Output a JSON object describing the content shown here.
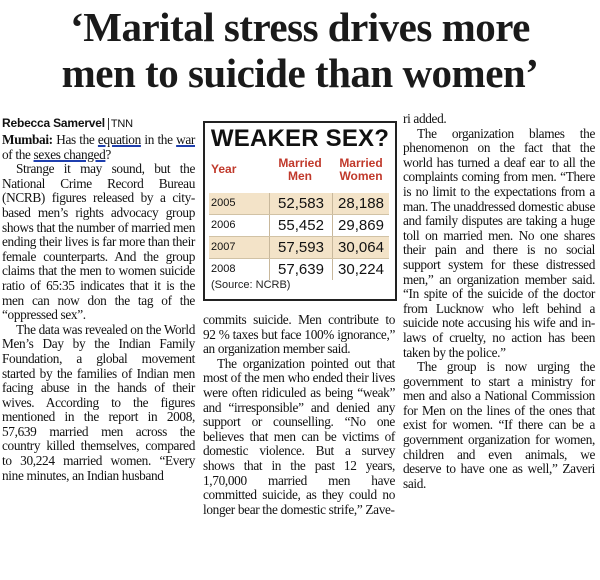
{
  "headline": {
    "line1": "‘Marital stress drives more",
    "line2": "men to suicide than women’"
  },
  "byline": {
    "author": "Rebecca Samervel",
    "agency": "TNN"
  },
  "col1": {
    "lead_dateline": "Mumbai:",
    "lead_a": " Has the ",
    "lead_u1": "equation",
    "lead_b": " in the ",
    "lead_u2": "war",
    "lead_c": " of the ",
    "lead_u3": "sexes changed",
    "lead_d": "?",
    "p2": "Strange it may sound, but the National Crime Record Bureau (NCRB) figures released by a city-based men’s rights advocacy group shows that the number of married men ending their lives is far more than their female counterparts. And the group claims that the men to women suicide ratio of 65:35 indicates that it is the men can now don the tag of the “oppressed sex”.",
    "p3": "The data was revealed on the World Men’s Day by the Indian Family Foundation, a global movement started by the families of Indian men facing abuse in the hands of their wives. According to the figures mentioned in the report in 2008, 57,639 married men across the country killed themselves, compared to 30,224 married women. “Every nine minutes, an Indian husband"
  },
  "col2": {
    "p1": "commits suicide. Men contribute to 92 % taxes but face 100% ignorance,” an organization member said.",
    "p2": "The organization pointed out that most of the men who ended their lives were often ridiculed as being “weak” and “irresponsible” and denied any support or counselling. “No one believes that men can be victims of domestic violence. But a survey shows that in the past 12 years, 1,70,000 married men have committed suicide, as they could no longer bear the domestic strife,” Zave-"
  },
  "col3": {
    "p1": "ri added.",
    "p2": "The organization blames the phenomenon on the fact that the world has turned a deaf ear to all the complaints coming from men. “There is no limit to the expectations from a man. The unaddressed domestic abuse and family disputes are taking a huge toll on married men. No one shares their pain and there is no social support system for these distressed men,” an organization member said. “In spite of the suicide of the doctor from Lucknow who left behind a suicide note accusing his wife and in-laws of cruelty, no action has been taken by the police.”",
    "p3": "The group is now urging the government to start a ministry for men and also a National Commission for Men on the lines of the ones that exist for women. “If there can be a government organization for women, children and even animals, we deserve to have one as well,” Zaveri said."
  },
  "table": {
    "title": "WEAKER SEX?",
    "headers": {
      "year": "Year",
      "men": "Married Men",
      "women": "Married Women"
    },
    "rows": [
      {
        "year": "2005",
        "men": "52,583",
        "women": "28,188"
      },
      {
        "year": "2006",
        "men": "55,452",
        "women": "29,869"
      },
      {
        "year": "2007",
        "men": "57,593",
        "women": "30,064"
      },
      {
        "year": "2008",
        "men": "57,639",
        "women": "30,224"
      }
    ],
    "source": "(Source: NCRB)",
    "colors": {
      "header_text": "#c0392b",
      "shade": "#f3e3c8"
    }
  }
}
